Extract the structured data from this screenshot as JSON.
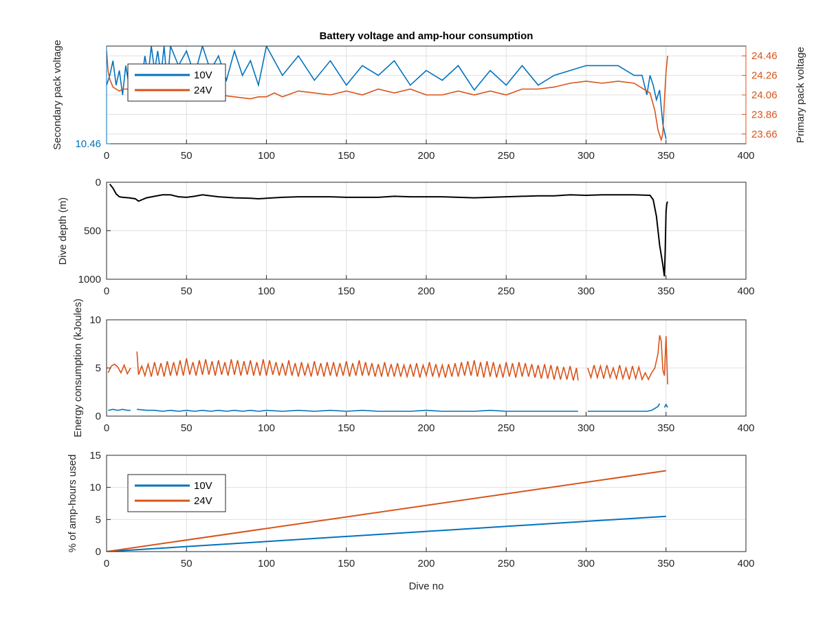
{
  "figure_title": "Battery voltage and amp-hour consumption",
  "colors": {
    "series_10v": "#0072BD",
    "series_24v": "#D95319",
    "depth": "#000000",
    "axis": "#262626",
    "grid": "#dfdfdf"
  },
  "chart_data": [
    {
      "type": "line",
      "title": "Battery voltage and amp-hour consumption",
      "xlabel": "",
      "ylabel_left": "Secondary pack voltage",
      "ylabel_right": "Primary pack voltage",
      "xlim": [
        0,
        400
      ],
      "xticks": [
        "0",
        "50",
        "100",
        "150",
        "200",
        "250",
        "300",
        "350",
        "400"
      ],
      "ylim_left": [
        10.46,
        10.66
      ],
      "yticks_left": [
        "10.46"
      ],
      "ylim_right": [
        23.56,
        24.56
      ],
      "yticks_right": [
        "23.66",
        "23.86",
        "24.06",
        "24.26",
        "24.46"
      ],
      "grid": true,
      "legend": {
        "placement": "top-left",
        "entries": [
          "10V",
          "24V"
        ]
      },
      "series": [
        {
          "name": "10V",
          "axis": "left",
          "x": [
            0,
            2,
            4,
            6,
            8,
            10,
            12,
            14,
            16,
            18,
            20,
            22,
            24,
            26,
            28,
            30,
            32,
            34,
            36,
            38,
            40,
            45,
            50,
            55,
            60,
            65,
            70,
            75,
            80,
            85,
            90,
            95,
            100,
            110,
            120,
            130,
            140,
            150,
            160,
            170,
            180,
            190,
            200,
            210,
            220,
            230,
            240,
            250,
            260,
            270,
            280,
            290,
            300,
            310,
            320,
            330,
            335,
            338,
            340,
            342,
            344,
            346,
            348,
            350
          ],
          "y": [
            10.58,
            10.6,
            10.63,
            10.58,
            10.61,
            10.56,
            10.62,
            10.58,
            10.6,
            10.55,
            10.62,
            10.59,
            10.64,
            10.6,
            10.66,
            10.61,
            10.65,
            10.6,
            10.66,
            10.58,
            10.66,
            10.62,
            10.65,
            10.6,
            10.66,
            10.61,
            10.64,
            10.59,
            10.65,
            10.6,
            10.63,
            10.58,
            10.66,
            10.6,
            10.64,
            10.59,
            10.63,
            10.58,
            10.62,
            10.6,
            10.63,
            10.58,
            10.61,
            10.59,
            10.62,
            10.57,
            10.61,
            10.58,
            10.62,
            10.58,
            10.6,
            10.61,
            10.62,
            10.62,
            10.62,
            10.6,
            10.6,
            10.56,
            10.6,
            10.58,
            10.55,
            10.57,
            10.5,
            10.47
          ]
        },
        {
          "name": "24V",
          "axis": "right",
          "x": [
            0,
            1,
            2,
            4,
            6,
            8,
            10,
            14,
            18,
            22,
            26,
            30,
            35,
            40,
            45,
            50,
            55,
            60,
            70,
            80,
            90,
            95,
            100,
            105,
            110,
            120,
            130,
            140,
            150,
            160,
            170,
            180,
            190,
            200,
            210,
            220,
            230,
            240,
            250,
            260,
            270,
            280,
            290,
            300,
            310,
            320,
            330,
            340,
            343,
            345,
            347,
            348,
            349,
            350,
            351
          ],
          "y": [
            24.51,
            24.3,
            24.22,
            24.14,
            24.12,
            24.1,
            24.12,
            24.12,
            24.13,
            24.1,
            24.1,
            24.08,
            24.06,
            24.08,
            24.05,
            24.04,
            24.03,
            24.02,
            24.06,
            24.04,
            24.02,
            24.04,
            24.04,
            24.08,
            24.04,
            24.1,
            24.08,
            24.06,
            24.1,
            24.06,
            24.12,
            24.08,
            24.12,
            24.06,
            24.06,
            24.1,
            24.06,
            24.1,
            24.06,
            24.12,
            24.12,
            24.14,
            24.18,
            24.2,
            24.18,
            24.2,
            24.18,
            24.08,
            23.9,
            23.7,
            23.6,
            23.66,
            24.0,
            24.3,
            24.46
          ]
        }
      ]
    },
    {
      "type": "line",
      "title": "",
      "xlabel": "",
      "ylabel": "Dive depth (m)",
      "xlim": [
        0,
        400
      ],
      "xticks": [
        "0",
        "50",
        "100",
        "150",
        "200",
        "250",
        "300",
        "350",
        "400"
      ],
      "ylim": [
        0,
        1000
      ],
      "yticks": [
        "0",
        "500",
        "1000"
      ],
      "y_reversed": true,
      "grid": true,
      "series": [
        {
          "x": [
            2,
            4,
            6,
            8,
            10,
            14,
            18,
            20,
            25,
            30,
            35,
            40,
            45,
            50,
            55,
            60,
            70,
            80,
            90,
            95,
            100,
            110,
            120,
            130,
            140,
            150,
            160,
            170,
            180,
            190,
            200,
            210,
            220,
            230,
            240,
            250,
            260,
            270,
            280,
            290,
            300,
            310,
            320,
            330,
            340,
            342,
            344,
            346,
            348,
            349,
            349.5,
            350,
            350.5,
            351
          ],
          "y": [
            20,
            60,
            120,
            150,
            155,
            160,
            170,
            195,
            160,
            145,
            130,
            130,
            150,
            155,
            145,
            130,
            150,
            160,
            165,
            170,
            165,
            155,
            150,
            150,
            150,
            155,
            155,
            155,
            145,
            150,
            150,
            150,
            155,
            160,
            155,
            150,
            145,
            140,
            140,
            130,
            135,
            130,
            130,
            130,
            135,
            180,
            350,
            650,
            850,
            970,
            700,
            300,
            220,
            200
          ]
        }
      ]
    },
    {
      "type": "line",
      "title": "",
      "xlabel": "",
      "ylabel": "Energy consumption (kJoules)",
      "xlim": [
        0,
        400
      ],
      "xticks": [
        "0",
        "50",
        "100",
        "150",
        "200",
        "250",
        "300",
        "350",
        "400"
      ],
      "ylim": [
        0,
        10
      ],
      "yticks": [
        "0",
        "5",
        "10"
      ],
      "grid": true,
      "series": [
        {
          "name": "24V",
          "segments": [
            {
              "x": [
                1,
                3,
                5,
                7,
                9,
                11,
                13,
                15
              ],
              "y": [
                4.5,
                5.2,
                5.4,
                5.1,
                4.5,
                5.3,
                4.4,
                5.0
              ]
            },
            {
              "x": [
                19,
                20,
                22,
                24,
                26,
                28,
                30,
                32,
                34,
                36,
                38,
                40,
                42,
                44,
                46,
                48,
                50,
                52,
                54,
                56,
                58,
                60,
                62,
                64,
                66,
                68,
                70,
                72,
                74,
                76,
                78,
                80,
                82,
                84,
                86,
                88,
                90,
                92,
                94,
                96,
                98,
                100,
                102,
                104,
                106,
                108,
                110,
                112,
                114,
                116,
                118,
                120,
                122,
                124,
                126,
                128,
                130,
                132,
                134,
                136,
                138,
                140,
                142,
                144,
                146,
                148,
                150,
                152,
                154,
                156,
                158,
                160,
                162,
                164,
                166,
                168,
                170,
                172,
                174,
                176,
                178,
                180,
                182,
                184,
                186,
                188,
                190,
                192,
                194,
                196,
                198,
                200,
                202,
                204,
                206,
                208,
                210,
                212,
                214,
                216,
                218,
                220,
                222,
                224,
                226,
                228,
                230,
                232,
                234,
                236,
                238,
                240,
                242,
                244,
                246,
                248,
                250,
                252,
                254,
                256,
                258,
                260,
                262,
                264,
                266,
                268,
                270,
                272,
                274,
                276,
                278,
                280,
                282,
                284,
                286,
                288,
                290,
                292,
                294,
                295
              ],
              "y": [
                6.7,
                4.3,
                5.2,
                4.2,
                5.4,
                4.1,
                5.6,
                4.2,
                5.5,
                4.1,
                5.7,
                4.2,
                5.6,
                4.2,
                5.8,
                4.2,
                6.0,
                4.3,
                5.6,
                4.2,
                5.8,
                4.3,
                5.9,
                4.3,
                5.7,
                4.2,
                5.8,
                4.3,
                5.6,
                4.2,
                5.9,
                4.3,
                5.8,
                4.2,
                5.7,
                4.3,
                5.8,
                4.2,
                5.6,
                4.2,
                5.9,
                4.2,
                5.8,
                4.3,
                5.6,
                4.2,
                5.5,
                4.2,
                5.8,
                4.2,
                5.5,
                4.1,
                5.6,
                4.2,
                5.4,
                4.1,
                5.7,
                4.2,
                5.5,
                4.1,
                5.6,
                4.2,
                5.6,
                4.1,
                5.5,
                4.2,
                5.7,
                4.1,
                5.5,
                4.2,
                5.8,
                4.2,
                5.6,
                4.2,
                5.5,
                4.1,
                5.4,
                4.1,
                5.6,
                4.1,
                5.4,
                4.1,
                5.5,
                4.1,
                5.3,
                4.1,
                5.4,
                4.1,
                5.5,
                4.0,
                5.3,
                4.2,
                5.6,
                4.1,
                5.4,
                4.1,
                5.3,
                4.0,
                5.4,
                4.1,
                5.5,
                4.1,
                5.6,
                4.2,
                5.7,
                4.2,
                5.8,
                4.1,
                5.6,
                4.0,
                5.7,
                4.1,
                5.6,
                4.0,
                5.4,
                4.0,
                5.6,
                4.1,
                5.5,
                4.0,
                5.6,
                4.1,
                5.5,
                4.1,
                5.4,
                4.0,
                5.3,
                3.9,
                5.4,
                3.9,
                5.3,
                3.8,
                5.2,
                3.8,
                5.1,
                3.8,
                5.2,
                3.7,
                5.0,
                3.7
              ]
            },
            {
              "x": [
                301,
                303,
                305,
                307,
                309,
                311,
                313,
                315,
                317,
                319,
                321,
                323,
                325,
                327,
                329,
                331,
                333,
                335,
                337,
                339,
                341,
                343,
                345,
                346,
                347,
                348,
                349,
                350,
                351
              ],
              "y": [
                5.0,
                4.0,
                5.3,
                4.0,
                5.2,
                3.9,
                5.3,
                4.0,
                5.0,
                3.9,
                5.3,
                3.9,
                5.0,
                3.8,
                5.2,
                3.9,
                5.1,
                3.8,
                4.5,
                3.8,
                4.5,
                5.0,
                6.5,
                8.4,
                7.8,
                4.8,
                4.2,
                8.3,
                3.3
              ]
            }
          ]
        },
        {
          "name": "10V",
          "segments": [
            {
              "x": [
                1,
                4,
                7,
                10,
                13,
                15
              ],
              "y": [
                0.6,
                0.7,
                0.6,
                0.7,
                0.6,
                0.6
              ]
            },
            {
              "x": [
                19,
                25,
                30,
                35,
                40,
                45,
                50,
                55,
                60,
                65,
                70,
                75,
                80,
                85,
                90,
                95,
                100,
                110,
                120,
                130,
                140,
                150,
                160,
                170,
                180,
                190,
                200,
                210,
                220,
                230,
                240,
                250,
                260,
                270,
                280,
                290,
                295
              ],
              "y": [
                0.7,
                0.6,
                0.6,
                0.5,
                0.6,
                0.5,
                0.6,
                0.5,
                0.6,
                0.5,
                0.6,
                0.5,
                0.6,
                0.5,
                0.6,
                0.5,
                0.6,
                0.5,
                0.6,
                0.5,
                0.6,
                0.5,
                0.6,
                0.5,
                0.5,
                0.5,
                0.6,
                0.5,
                0.5,
                0.5,
                0.6,
                0.5,
                0.5,
                0.5,
                0.5,
                0.5,
                0.5
              ]
            },
            {
              "x": [
                301,
                310,
                320,
                330,
                338,
                341,
                343,
                345,
                346
              ],
              "y": [
                0.5,
                0.5,
                0.5,
                0.5,
                0.5,
                0.6,
                0.8,
                1.0,
                1.3
              ]
            },
            {
              "x": [
                349,
                350,
                351
              ],
              "y": [
                0.9,
                1.2,
                0.9
              ]
            }
          ]
        }
      ]
    },
    {
      "type": "line",
      "title": "",
      "xlabel": "Dive no",
      "ylabel": "% of amp-hours used",
      "xlim": [
        0,
        400
      ],
      "xticks": [
        "0",
        "50",
        "100",
        "150",
        "200",
        "250",
        "300",
        "350",
        "400"
      ],
      "ylim": [
        0,
        15
      ],
      "yticks": [
        "0",
        "5",
        "10",
        "15"
      ],
      "grid": true,
      "legend": {
        "placement": "top-left",
        "entries": [
          "10V",
          "24V"
        ]
      },
      "series": [
        {
          "name": "10V",
          "x": [
            0,
            350
          ],
          "y": [
            0,
            5.5
          ]
        },
        {
          "name": "24V",
          "x": [
            0,
            350
          ],
          "y": [
            0,
            12.6
          ]
        }
      ]
    }
  ]
}
